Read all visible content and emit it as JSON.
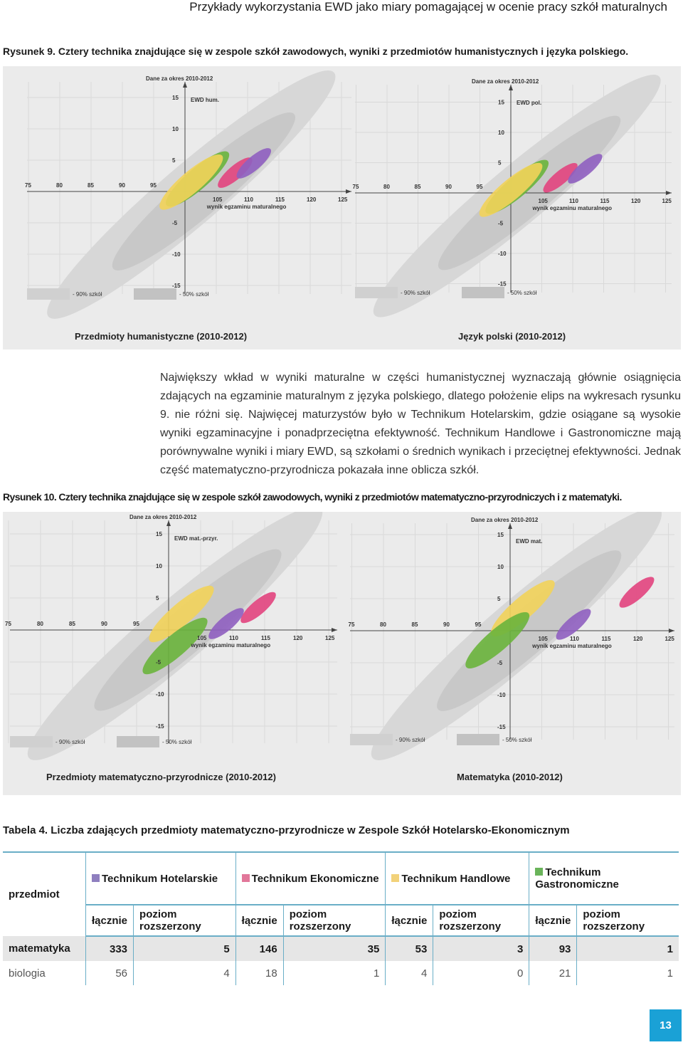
{
  "header": "Przykłady wykorzystania EWD jako miary pomagającej w ocenie pracy szkół maturalnych",
  "figure9": {
    "label": "Rysunek 9.",
    "caption": "Cztery technika znajdujące się w zespole szkół zawodowych, wyniki z przedmiotów humanistycznych i języka polskiego.",
    "charts": [
      {
        "period_label": "Dane za okres 2010-2012",
        "y_title": "EWD hum.",
        "x_title": "wynik egzaminu maturalnego",
        "subtitle": "Przedmioty humanistyczne  (2010-2012)"
      },
      {
        "period_label": "Dane za okres 2010-2012",
        "y_title": "EWD pol.",
        "x_title": "wynik egzaminu maturalnego",
        "subtitle": "Język polski  (2010-2012)"
      }
    ]
  },
  "paragraph": "Największy wkład w wyniki maturalne w części humanistycznej wyznaczają głównie osiągnięcia zdających na egzaminie maturalnym z języka polskiego, dlatego położenie elips na wykresach rysunku 9. nie różni się. Najwięcej maturzystów było w Technikum Hotelarskim, gdzie osiągane są wysokie wyniki egzaminacyjne i ponadprzeciętna efektywność. Technikum Handlowe i Gastronomiczne mają porównywalne wyniki i miary EWD, są szkołami o średnich wynikach i przeciętnej efektywności. Jednak część matematyczno-przyrodnicza pokazała inne oblicza szkół.",
  "figure10": {
    "label": "Rysunek 10.",
    "caption": "Cztery technika znajdujące się w zespole szkół zawodowych, wyniki z przedmiotów matematyczno-przyrodniczych i z matematyki.",
    "charts": [
      {
        "period_label": "Dane za okres 2010-2012",
        "y_title": "EWD mat.-przyr.",
        "x_title": "wynik egzaminu maturalnego",
        "subtitle": "Przedmioty matematyczno-przyrodnicze (2010-2012)"
      },
      {
        "period_label": "Dane za okres 2010-2012",
        "y_title": "EWD mat.",
        "x_title": "wynik egzaminu maturalnego",
        "subtitle": "Matematyka  (2010-2012)"
      }
    ]
  },
  "chart_data": [
    {
      "type": "scatter",
      "title": "Dane za okres 2010-2012",
      "ylabel": "EWD hum.",
      "xlabel": "wynik egzaminu maturalnego",
      "x_ticks": [
        75,
        80,
        85,
        90,
        95,
        105,
        110,
        115,
        120,
        125
      ],
      "y_ticks": [
        15,
        10,
        5,
        -5,
        -10,
        -15
      ],
      "legend": [
        "- 90% szkół",
        "- 50% szkół"
      ],
      "ellipses": [
        {
          "school": "Technikum Gastronomiczne",
          "color": "#6ab43c",
          "cx": 102,
          "cy": 2
        },
        {
          "school": "Technikum Handlowe",
          "color": "#f2d35a",
          "cx": 101,
          "cy": 1.5
        },
        {
          "school": "Technikum Ekonomiczne",
          "color": "#e2447e",
          "cx": 108,
          "cy": 3
        },
        {
          "school": "Technikum Hotelarskie",
          "color": "#8f5fc0",
          "cx": 111,
          "cy": 4.5
        }
      ]
    },
    {
      "type": "scatter",
      "title": "Dane za okres 2010-2012",
      "ylabel": "EWD pol.",
      "xlabel": "wynik egzaminu maturalnego",
      "x_ticks": [
        75,
        80,
        85,
        90,
        95,
        105,
        110,
        115,
        120,
        125
      ],
      "y_ticks": [
        15,
        10,
        5,
        -5,
        -10,
        -15
      ],
      "legend": [
        "- 90% szkół",
        "- 50% szkół"
      ],
      "ellipses": [
        {
          "school": "Technikum Gastronomiczne",
          "color": "#6ab43c",
          "cx": 101,
          "cy": 1
        },
        {
          "school": "Technikum Handlowe",
          "color": "#f2d35a",
          "cx": 100,
          "cy": 0.5
        },
        {
          "school": "Technikum Ekonomiczne",
          "color": "#e2447e",
          "cx": 108,
          "cy": 2.5
        },
        {
          "school": "Technikum Hotelarskie",
          "color": "#8f5fc0",
          "cx": 112,
          "cy": 4
        }
      ]
    },
    {
      "type": "scatter",
      "title": "Dane za okres 2010-2012",
      "ylabel": "EWD mat.-przyr.",
      "xlabel": "wynik egzaminu maturalnego",
      "x_ticks": [
        75,
        80,
        85,
        90,
        95,
        105,
        110,
        115,
        120,
        125
      ],
      "y_ticks": [
        15,
        10,
        5,
        -5,
        -10,
        -15
      ],
      "legend": [
        "- 90% szkół",
        "- 50% szkół"
      ],
      "ellipses": [
        {
          "school": "Technikum Handlowe",
          "color": "#f2d35a",
          "cx": 102,
          "cy": 2.5
        },
        {
          "school": "Technikum Gastronomiczne",
          "color": "#6ab43c",
          "cx": 101,
          "cy": -2.5
        },
        {
          "school": "Technikum Ekonomiczne",
          "color": "#e2447e",
          "cx": 114,
          "cy": 3.5
        },
        {
          "school": "Technikum Hotelarskie",
          "color": "#8f5fc0",
          "cx": 109,
          "cy": 1
        }
      ]
    },
    {
      "type": "scatter",
      "title": "Dane za okres 2010-2012",
      "ylabel": "EWD mat.",
      "xlabel": "wynik egzaminu maturalnego",
      "x_ticks": [
        75,
        80,
        85,
        90,
        95,
        105,
        110,
        115,
        120,
        125
      ],
      "y_ticks": [
        15,
        10,
        5,
        -5,
        -10,
        -15
      ],
      "legend": [
        "- 90% szkół",
        "- 50% szkół"
      ],
      "ellipses": [
        {
          "school": "Technikum Handlowe",
          "color": "#f2d35a",
          "cx": 102,
          "cy": 3.5
        },
        {
          "school": "Technikum Gastronomiczne",
          "color": "#6ab43c",
          "cx": 98,
          "cy": -1.5
        },
        {
          "school": "Technikum Ekonomiczne",
          "color": "#e2447e",
          "cx": 120,
          "cy": 6
        },
        {
          "school": "Technikum Hotelarskie",
          "color": "#8f5fc0",
          "cx": 110,
          "cy": 1
        }
      ]
    }
  ],
  "table": {
    "label": "Tabela  4.",
    "caption": "Liczba zdających przedmioty matematyczno-przyrodnicze w Zespole Szkół Hotelarsko-Ekonomicznym",
    "col_subject": "przedmiot",
    "schools": [
      {
        "name": "Technikum Hotelarskie",
        "color": "#8f7fbf"
      },
      {
        "name": "Technikum Ekonomiczne",
        "color": "#e2779a"
      },
      {
        "name": "Technikum Handlowe",
        "color": "#f2d27a"
      },
      {
        "name": "Technikum Gastronomiczne",
        "color": "#6ab45a"
      }
    ],
    "sub_total": "łącznie",
    "sub_ext": "poziom rozszerzony",
    "rows": [
      {
        "subject": "matematyka",
        "values": [
          "333",
          "5",
          "146",
          "35",
          "53",
          "3",
          "93",
          "1"
        ]
      },
      {
        "subject": "biologia",
        "values": [
          "56",
          "4",
          "18",
          "1",
          "4",
          "0",
          "21",
          "1"
        ]
      }
    ]
  },
  "page_number": "13"
}
